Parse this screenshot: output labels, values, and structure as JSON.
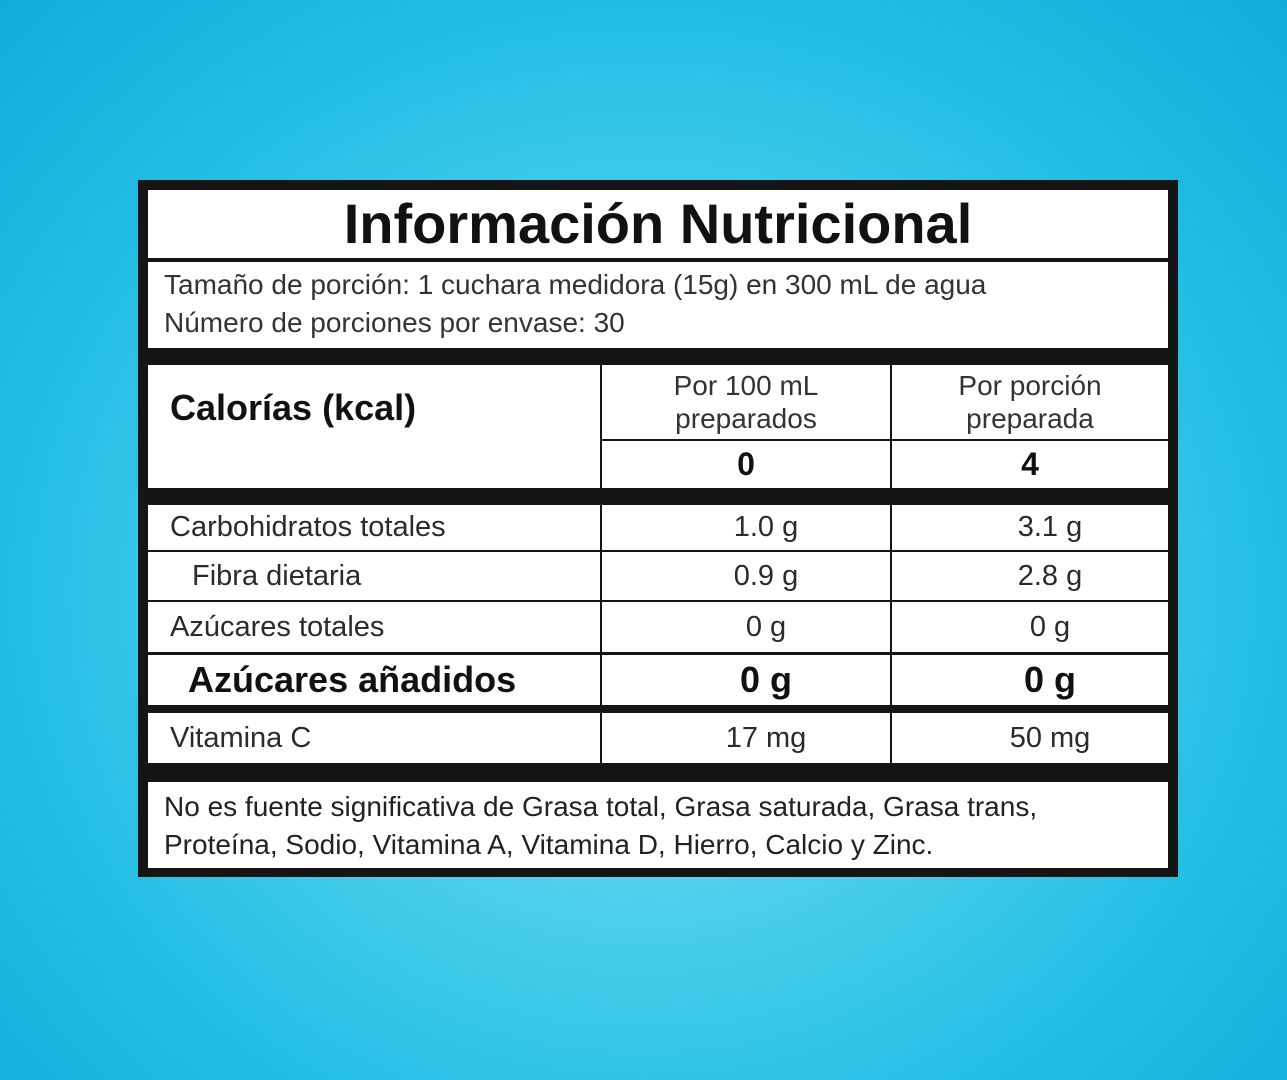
{
  "title": "Información Nutricional",
  "serving": [
    "Tamaño de porción: 1 cuchara medidora (15g) en 300 mL de agua",
    "Número de porciones por envase: 30"
  ],
  "calories": {
    "label": "Calorías (kcal)",
    "columns": [
      [
        "Por 100 mL",
        "preparados"
      ],
      [
        "Por porción",
        "preparada"
      ]
    ],
    "values": [
      "0",
      "4"
    ]
  },
  "rows": [
    {
      "name": "Carbohidratos totales",
      "values": [
        "1.0 g",
        "3.1 g"
      ]
    },
    {
      "name": "Fibra dietaria",
      "values": [
        "0.9 g",
        "2.8 g"
      ]
    },
    {
      "name": "Azúcares totales",
      "values": [
        "0 g",
        "0 g"
      ]
    },
    {
      "name": "Azúcares añadidos",
      "values": [
        "0 g",
        "0 g"
      ]
    },
    {
      "name": "Vitamina C",
      "values": [
        "17 mg",
        "50 mg"
      ]
    }
  ],
  "footer": [
    "No es fuente significativa de Grasa total, Grasa saturada, Grasa trans,",
    "Proteína, Sodio, Vitamina A, Vitamina D, Hierro, Calcio y Zinc."
  ]
}
